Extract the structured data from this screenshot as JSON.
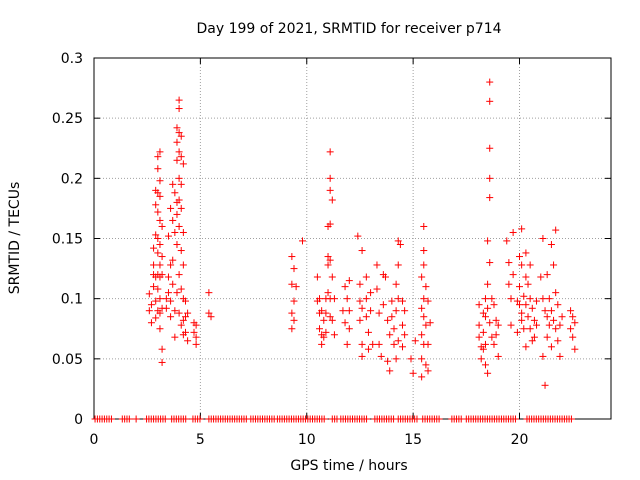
{
  "chart_data": {
    "type": "scatter",
    "title": "Day 199 of 2021, SRMTID for receiver p714",
    "xlabel": "GPS time / hours",
    "ylabel": "SRMTID / TECUs",
    "xlim": [
      0,
      24.3
    ],
    "ylim": [
      0,
      0.3
    ],
    "grid": true,
    "x_ticks": [
      0,
      5,
      10,
      15,
      20
    ],
    "x_tick_labels": [
      "0",
      "5",
      "10",
      "15",
      "20"
    ],
    "y_ticks": [
      0,
      0.05,
      0.1,
      0.15,
      0.2,
      0.25,
      0.3
    ],
    "y_tick_labels": [
      "0",
      "0.05",
      "0.1",
      "0.15",
      "0.2",
      "0.25",
      "0.3"
    ],
    "marker": "+",
    "color": "#ff0000",
    "series": [
      {
        "name": "SRMTID",
        "points": [
          [
            2.6,
            0.104
          ],
          [
            2.6,
            0.09
          ],
          [
            2.7,
            0.08
          ],
          [
            2.7,
            0.095
          ],
          [
            2.8,
            0.12
          ],
          [
            2.8,
            0.142
          ],
          [
            2.8,
            0.128
          ],
          [
            2.8,
            0.11
          ],
          [
            2.9,
            0.19
          ],
          [
            2.9,
            0.178
          ],
          [
            2.9,
            0.153
          ],
          [
            2.9,
            0.118
          ],
          [
            2.9,
            0.098
          ],
          [
            2.9,
            0.084
          ],
          [
            3.0,
            0.218
          ],
          [
            3.0,
            0.208
          ],
          [
            3.0,
            0.188
          ],
          [
            3.0,
            0.172
          ],
          [
            3.0,
            0.15
          ],
          [
            3.0,
            0.138
          ],
          [
            3.0,
            0.12
          ],
          [
            3.0,
            0.108
          ],
          [
            3.0,
            0.09
          ],
          [
            3.1,
            0.222
          ],
          [
            3.1,
            0.198
          ],
          [
            3.1,
            0.185
          ],
          [
            3.1,
            0.165
          ],
          [
            3.1,
            0.145
          ],
          [
            3.1,
            0.128
          ],
          [
            3.1,
            0.118
          ],
          [
            3.1,
            0.1
          ],
          [
            3.1,
            0.088
          ],
          [
            3.1,
            0.075
          ],
          [
            3.2,
            0.16
          ],
          [
            3.2,
            0.135
          ],
          [
            3.2,
            0.12
          ],
          [
            3.2,
            0.092
          ],
          [
            3.2,
            0.058
          ],
          [
            3.2,
            0.047
          ],
          [
            3.4,
            0.1
          ],
          [
            3.4,
            0.092
          ],
          [
            3.5,
            0.152
          ],
          [
            3.5,
            0.118
          ],
          [
            3.5,
            0.105
          ],
          [
            3.6,
            0.175
          ],
          [
            3.6,
            0.128
          ],
          [
            3.6,
            0.098
          ],
          [
            3.6,
            0.085
          ],
          [
            3.7,
            0.195
          ],
          [
            3.7,
            0.165
          ],
          [
            3.7,
            0.132
          ],
          [
            3.7,
            0.112
          ],
          [
            3.8,
            0.188
          ],
          [
            3.8,
            0.155
          ],
          [
            3.8,
            0.09
          ],
          [
            3.8,
            0.068
          ],
          [
            3.9,
            0.242
          ],
          [
            3.9,
            0.23
          ],
          [
            3.9,
            0.215
          ],
          [
            3.9,
            0.18
          ],
          [
            3.9,
            0.17
          ],
          [
            3.9,
            0.145
          ],
          [
            3.9,
            0.105
          ],
          [
            4.0,
            0.265
          ],
          [
            4.0,
            0.258
          ],
          [
            4.0,
            0.238
          ],
          [
            4.0,
            0.222
          ],
          [
            4.0,
            0.2
          ],
          [
            4.0,
            0.182
          ],
          [
            4.0,
            0.16
          ],
          [
            4.0,
            0.12
          ],
          [
            4.0,
            0.088
          ],
          [
            4.1,
            0.235
          ],
          [
            4.1,
            0.218
          ],
          [
            4.1,
            0.195
          ],
          [
            4.1,
            0.175
          ],
          [
            4.1,
            0.14
          ],
          [
            4.1,
            0.108
          ],
          [
            4.1,
            0.078
          ],
          [
            4.2,
            0.212
          ],
          [
            4.2,
            0.155
          ],
          [
            4.2,
            0.128
          ],
          [
            4.2,
            0.1
          ],
          [
            4.2,
            0.082
          ],
          [
            4.2,
            0.07
          ],
          [
            4.3,
            0.098
          ],
          [
            4.3,
            0.085
          ],
          [
            4.3,
            0.072
          ],
          [
            4.4,
            0.088
          ],
          [
            4.4,
            0.065
          ],
          [
            4.7,
            0.08
          ],
          [
            4.7,
            0.072
          ],
          [
            4.8,
            0.078
          ],
          [
            4.8,
            0.068
          ],
          [
            4.8,
            0.062
          ],
          [
            5.4,
            0.105
          ],
          [
            5.4,
            0.088
          ],
          [
            5.5,
            0.085
          ],
          [
            9.3,
            0.135
          ],
          [
            9.3,
            0.112
          ],
          [
            9.3,
            0.088
          ],
          [
            9.3,
            0.075
          ],
          [
            9.4,
            0.125
          ],
          [
            9.4,
            0.098
          ],
          [
            9.4,
            0.082
          ],
          [
            9.5,
            0.11
          ],
          [
            9.8,
            0.148
          ],
          [
            10.5,
            0.118
          ],
          [
            10.5,
            0.098
          ],
          [
            10.6,
            0.1
          ],
          [
            10.6,
            0.088
          ],
          [
            10.6,
            0.075
          ],
          [
            10.7,
            0.09
          ],
          [
            10.7,
            0.07
          ],
          [
            10.7,
            0.062
          ],
          [
            10.8,
            0.082
          ],
          [
            10.8,
            0.068
          ],
          [
            10.9,
            0.1
          ],
          [
            10.9,
            0.088
          ],
          [
            10.9,
            0.072
          ],
          [
            11.0,
            0.16
          ],
          [
            11.0,
            0.135
          ],
          [
            11.0,
            0.128
          ],
          [
            11.0,
            0.105
          ],
          [
            11.1,
            0.222
          ],
          [
            11.1,
            0.2
          ],
          [
            11.1,
            0.19
          ],
          [
            11.1,
            0.162
          ],
          [
            11.1,
            0.132
          ],
          [
            11.1,
            0.1
          ],
          [
            11.1,
            0.085
          ],
          [
            11.2,
            0.182
          ],
          [
            11.2,
            0.118
          ],
          [
            11.2,
            0.082
          ],
          [
            11.3,
            0.1
          ],
          [
            11.3,
            0.07
          ],
          [
            11.7,
            0.09
          ],
          [
            11.8,
            0.11
          ],
          [
            11.8,
            0.08
          ],
          [
            11.9,
            0.1
          ],
          [
            11.9,
            0.062
          ],
          [
            12.0,
            0.115
          ],
          [
            12.0,
            0.09
          ],
          [
            12.0,
            0.075
          ],
          [
            12.4,
            0.152
          ],
          [
            12.5,
            0.112
          ],
          [
            12.5,
            0.098
          ],
          [
            12.5,
            0.082
          ],
          [
            12.6,
            0.14
          ],
          [
            12.6,
            0.092
          ],
          [
            12.6,
            0.062
          ],
          [
            12.6,
            0.052
          ],
          [
            12.8,
            0.118
          ],
          [
            12.8,
            0.1
          ],
          [
            12.8,
            0.085
          ],
          [
            12.9,
            0.072
          ],
          [
            12.9,
            0.058
          ],
          [
            13.0,
            0.105
          ],
          [
            13.0,
            0.09
          ],
          [
            13.1,
            0.062
          ],
          [
            13.3,
            0.128
          ],
          [
            13.3,
            0.108
          ],
          [
            13.4,
            0.088
          ],
          [
            13.4,
            0.062
          ],
          [
            13.5,
            0.052
          ],
          [
            13.6,
            0.12
          ],
          [
            13.6,
            0.095
          ],
          [
            13.7,
            0.118
          ],
          [
            13.8,
            0.082
          ],
          [
            13.8,
            0.048
          ],
          [
            13.9,
            0.07
          ],
          [
            13.9,
            0.04
          ],
          [
            14.0,
            0.098
          ],
          [
            14.0,
            0.085
          ],
          [
            14.1,
            0.075
          ],
          [
            14.1,
            0.062
          ],
          [
            14.2,
            0.112
          ],
          [
            14.2,
            0.09
          ],
          [
            14.2,
            0.05
          ],
          [
            14.3,
            0.148
          ],
          [
            14.3,
            0.128
          ],
          [
            14.3,
            0.1
          ],
          [
            14.3,
            0.065
          ],
          [
            14.4,
            0.145
          ],
          [
            14.5,
            0.098
          ],
          [
            14.5,
            0.078
          ],
          [
            14.5,
            0.06
          ],
          [
            14.6,
            0.09
          ],
          [
            14.6,
            0.07
          ],
          [
            14.9,
            0.05
          ],
          [
            15.0,
            0.038
          ],
          [
            15.1,
            0.065
          ],
          [
            15.4,
            0.118
          ],
          [
            15.4,
            0.092
          ],
          [
            15.4,
            0.07
          ],
          [
            15.4,
            0.05
          ],
          [
            15.4,
            0.035
          ],
          [
            15.5,
            0.16
          ],
          [
            15.5,
            0.14
          ],
          [
            15.5,
            0.128
          ],
          [
            15.5,
            0.1
          ],
          [
            15.5,
            0.085
          ],
          [
            15.5,
            0.062
          ],
          [
            15.6,
            0.11
          ],
          [
            15.6,
            0.078
          ],
          [
            15.6,
            0.045
          ],
          [
            15.7,
            0.098
          ],
          [
            15.7,
            0.062
          ],
          [
            15.7,
            0.04
          ],
          [
            15.8,
            0.08
          ],
          [
            18.1,
            0.095
          ],
          [
            18.1,
            0.078
          ],
          [
            18.1,
            0.068
          ],
          [
            18.2,
            0.06
          ],
          [
            18.2,
            0.05
          ],
          [
            18.3,
            0.088
          ],
          [
            18.3,
            0.072
          ],
          [
            18.3,
            0.058
          ],
          [
            18.4,
            0.1
          ],
          [
            18.4,
            0.085
          ],
          [
            18.4,
            0.062
          ],
          [
            18.4,
            0.045
          ],
          [
            18.5,
            0.148
          ],
          [
            18.5,
            0.112
          ],
          [
            18.5,
            0.092
          ],
          [
            18.5,
            0.038
          ],
          [
            18.6,
            0.28
          ],
          [
            18.6,
            0.264
          ],
          [
            18.6,
            0.225
          ],
          [
            18.6,
            0.2
          ],
          [
            18.6,
            0.184
          ],
          [
            18.6,
            0.13
          ],
          [
            18.6,
            0.08
          ],
          [
            18.7,
            0.1
          ],
          [
            18.7,
            0.068
          ],
          [
            18.8,
            0.095
          ],
          [
            18.8,
            0.062
          ],
          [
            18.9,
            0.082
          ],
          [
            18.9,
            0.07
          ],
          [
            19.0,
            0.078
          ],
          [
            19.0,
            0.052
          ],
          [
            19.4,
            0.148
          ],
          [
            19.5,
            0.13
          ],
          [
            19.5,
            0.112
          ],
          [
            19.6,
            0.1
          ],
          [
            19.6,
            0.078
          ],
          [
            19.7,
            0.155
          ],
          [
            19.7,
            0.12
          ],
          [
            19.9,
            0.098
          ],
          [
            19.9,
            0.072
          ],
          [
            20.0,
            0.135
          ],
          [
            20.0,
            0.11
          ],
          [
            20.0,
            0.095
          ],
          [
            20.1,
            0.158
          ],
          [
            20.1,
            0.128
          ],
          [
            20.1,
            0.088
          ],
          [
            20.1,
            0.082
          ],
          [
            20.2,
            0.102
          ],
          [
            20.2,
            0.075
          ],
          [
            20.3,
            0.138
          ],
          [
            20.3,
            0.118
          ],
          [
            20.3,
            0.095
          ],
          [
            20.3,
            0.06
          ],
          [
            20.4,
            0.112
          ],
          [
            20.4,
            0.085
          ],
          [
            20.5,
            0.128
          ],
          [
            20.5,
            0.1
          ],
          [
            20.5,
            0.075
          ],
          [
            20.6,
            0.092
          ],
          [
            20.6,
            0.065
          ],
          [
            20.7,
            0.082
          ],
          [
            20.7,
            0.068
          ],
          [
            20.8,
            0.098
          ],
          [
            20.8,
            0.078
          ],
          [
            21.0,
            0.118
          ],
          [
            21.1,
            0.15
          ],
          [
            21.1,
            0.1
          ],
          [
            21.1,
            0.052
          ],
          [
            21.2,
            0.09
          ],
          [
            21.2,
            0.028
          ],
          [
            21.3,
            0.12
          ],
          [
            21.3,
            0.085
          ],
          [
            21.3,
            0.068
          ],
          [
            21.4,
            0.1
          ],
          [
            21.4,
            0.078
          ],
          [
            21.5,
            0.145
          ],
          [
            21.5,
            0.09
          ],
          [
            21.5,
            0.06
          ],
          [
            21.6,
            0.128
          ],
          [
            21.6,
            0.082
          ],
          [
            21.7,
            0.157
          ],
          [
            21.7,
            0.105
          ],
          [
            21.7,
            0.075
          ],
          [
            21.8,
            0.095
          ],
          [
            21.8,
            0.065
          ],
          [
            21.9,
            0.078
          ],
          [
            21.9,
            0.052
          ],
          [
            22.0,
            0.085
          ],
          [
            22.4,
            0.09
          ],
          [
            22.4,
            0.075
          ],
          [
            22.5,
            0.085
          ],
          [
            22.5,
            0.068
          ],
          [
            22.6,
            0.08
          ],
          [
            22.6,
            0.058
          ]
        ]
      }
    ],
    "zero_band": [
      [
        0.05,
        0.88
      ],
      [
        1.33,
        1.68
      ],
      [
        1.98,
        2.07
      ],
      [
        2.47,
        3.42
      ],
      [
        3.65,
        4.38
      ],
      [
        4.65,
        5.05
      ],
      [
        5.4,
        7.2
      ],
      [
        7.37,
        8.52
      ],
      [
        8.62,
        10.9
      ],
      [
        11.2,
        11.45
      ],
      [
        11.6,
        12.9
      ],
      [
        13.2,
        14.08
      ],
      [
        14.3,
        15.18
      ],
      [
        15.45,
        16.25
      ],
      [
        16.82,
        17.35
      ],
      [
        17.5,
        19.9
      ],
      [
        20.35,
        22.5
      ]
    ]
  }
}
